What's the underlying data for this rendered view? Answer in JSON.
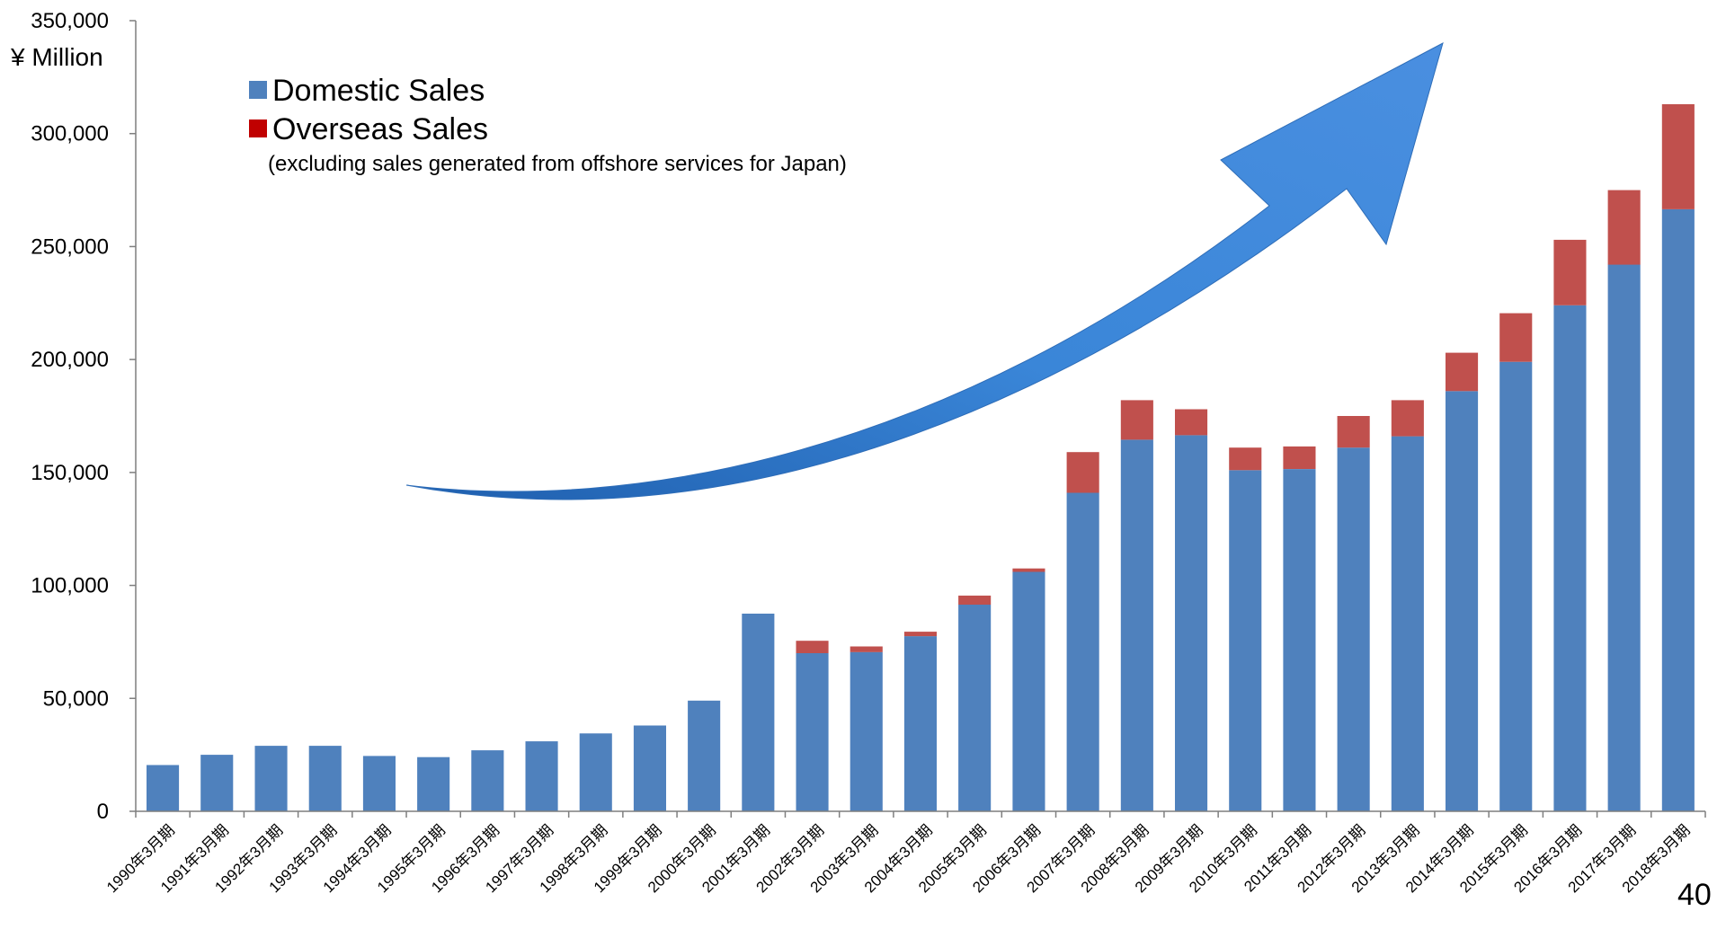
{
  "chart_data": {
    "type": "bar",
    "stacked": true,
    "unit_label": "¥ Million",
    "categories": [
      "1990年3月期",
      "1991年3月期",
      "1992年3月期",
      "1993年3月期",
      "1994年3月期",
      "1995年3月期",
      "1996年3月期",
      "1997年3月期",
      "1998年3月期",
      "1999年3月期",
      "2000年3月期",
      "2001年3月期",
      "2002年3月期",
      "2003年3月期",
      "2004年3月期",
      "2005年3月期",
      "2006年3月期",
      "2007年3月期",
      "2008年3月期",
      "2009年3月期",
      "2010年3月期",
      "2011年3月期",
      "2012年3月期",
      "2013年3月期",
      "2014年3月期",
      "2015年3月期",
      "2016年3月期",
      "2017年3月期",
      "2018年3月期"
    ],
    "series": [
      {
        "name": "Domestic Sales",
        "color": "#4f81bd",
        "values": [
          20500,
          25000,
          29000,
          29000,
          24500,
          24000,
          27000,
          31000,
          34500,
          38000,
          49000,
          87500,
          70000,
          70500,
          77500,
          91500,
          106000,
          141000,
          164500,
          166500,
          151000,
          151500,
          161000,
          166000,
          186000,
          199000,
          224000,
          242000,
          266500
        ]
      },
      {
        "name": "Overseas Sales",
        "color": "#c0504d",
        "values": [
          0,
          0,
          0,
          0,
          0,
          0,
          0,
          0,
          0,
          0,
          0,
          0,
          5500,
          2500,
          2000,
          4000,
          1500,
          18000,
          17500,
          11500,
          10000,
          10000,
          14000,
          16000,
          17000,
          21500,
          29000,
          33000,
          46500
        ]
      }
    ],
    "ylim": [
      0,
      350000
    ],
    "yticks": [
      0,
      50000,
      100000,
      150000,
      200000,
      250000,
      300000,
      350000
    ],
    "ytick_labels": [
      "0",
      "50,000",
      "100,000",
      "150,000",
      "200,000",
      "250,000",
      "300,000",
      "350,000"
    ],
    "legend": {
      "placement": "top-left",
      "note": "(excluding sales generated from offshore services for Japan)",
      "legend_marker_overseas_color": "#c00000"
    },
    "annotation": "upward-arrow",
    "arrow_color": "#3a7bd5",
    "grid": false
  },
  "page_number": "40"
}
